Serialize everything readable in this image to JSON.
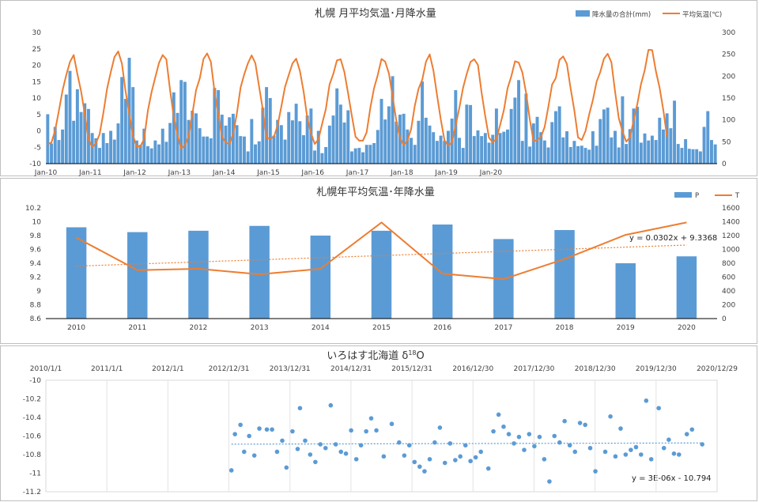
{
  "chart_data": [
    {
      "type": "bar+line",
      "title": "札幌 月平均気温･月降水量",
      "legend": [
        "降水量の合計(mm)",
        "平均気温(℃)"
      ],
      "legend_position": "top-right",
      "x_tick_labels": [
        "Jan-10",
        "Jan-11",
        "Jan-12",
        "Jan-13",
        "Jan-14",
        "Jan-15",
        "Jan-16",
        "Jan-17",
        "Jan-18",
        "Jan-19",
        "Jan-20"
      ],
      "y_left": {
        "min": -10,
        "max": 30,
        "ticks": [
          "-10",
          "-5",
          "0",
          "5",
          "10",
          "15",
          "20",
          "25",
          "30"
        ]
      },
      "y_right": {
        "min": 0,
        "max": 300,
        "ticks": [
          "0",
          "50",
          "100",
          "150",
          "200",
          "250",
          "300"
        ]
      },
      "bar_colors": "#5b9bd5",
      "line_color": "#ed7d31",
      "precipitation_mm": [
        113,
        46,
        84,
        54,
        78,
        158,
        212,
        98,
        170,
        118,
        138,
        125,
        70,
        58,
        36,
        70,
        47,
        75,
        55,
        92,
        198,
        148,
        242,
        175,
        53,
        43,
        80,
        40,
        35,
        53,
        44,
        80,
        50,
        93,
        163,
        116,
        191,
        187,
        100,
        121,
        115,
        81,
        62,
        62,
        58,
        173,
        168,
        112,
        87,
        106,
        114,
        88,
        63,
        62,
        28,
        102,
        44,
        51,
        128,
        175,
        150,
        64,
        100,
        88,
        55,
        118,
        99,
        137,
        97,
        65,
        110,
        126,
        30,
        75,
        24,
        38,
        87,
        110,
        172,
        135,
        94,
        122,
        28,
        35,
        36,
        26,
        43,
        43,
        47,
        77,
        148,
        101,
        131,
        200,
        96,
        112,
        114,
        78,
        59,
        43,
        98,
        188,
        105,
        87,
        72,
        52,
        64,
        52,
        75,
        103,
        168,
        59,
        36,
        135,
        134,
        63,
        76,
        63,
        70,
        48,
        66,
        126,
        70,
        73,
        78,
        125,
        151,
        191,
        52,
        160,
        39,
        92,
        107,
        72,
        53,
        37,
        95,
        120,
        131,
        60,
        74,
        38,
        52,
        40,
        41,
        36,
        32,
        74,
        41,
        102,
        124,
        128,
        60,
        75,
        37,
        154,
        45,
        79,
        126,
        130,
        48,
        69,
        53,
        64,
        54,
        105,
        78,
        115,
        81,
        144,
        45,
        36,
        56,
        34,
        33,
        33,
        28,
        84,
        120,
        54,
        44
      ],
      "temperature_c": [
        -4.0,
        -3.6,
        0.1,
        6.0,
        12.3,
        17.0,
        21.0,
        23.1,
        17.3,
        12.0,
        5.0,
        -2.5,
        -5.0,
        -3.8,
        -1.0,
        5.4,
        12.8,
        17.9,
        22.5,
        24.2,
        20.5,
        12.1,
        5.2,
        -1.5,
        -4.8,
        -4.7,
        -2.5,
        6.1,
        11.8,
        16.3,
        20.7,
        23.1,
        21.8,
        12.4,
        4.2,
        -1.2,
        -5.4,
        -4.4,
        -1.6,
        5.1,
        12.4,
        16.0,
        21.9,
        23.6,
        21.0,
        11.9,
        5.2,
        -1.8,
        -3.6,
        -4.0,
        -0.9,
        5.3,
        13.2,
        17.2,
        20.6,
        23.0,
        20.6,
        13.5,
        6.5,
        -2.2,
        -2.3,
        -1.8,
        1.7,
        7.5,
        13.4,
        17.0,
        20.5,
        22.0,
        18.3,
        12.0,
        3.9,
        -0.7,
        -4.0,
        -2.6,
        2.2,
        6.6,
        14.1,
        17.3,
        21.5,
        21.8,
        17.9,
        11.4,
        4.6,
        -1.8,
        -3.0,
        -3.0,
        -0.5,
        7.0,
        13.0,
        17.0,
        21.9,
        21.1,
        17.5,
        10.4,
        3.1,
        -2.2,
        -4.4,
        -3.0,
        0.5,
        7.7,
        12.8,
        15.6,
        21.1,
        23.3,
        18.4,
        10.7,
        3.5,
        -2.9,
        -4.5,
        -3.5,
        1.6,
        7.0,
        13.1,
        17.4,
        21.0,
        21.8,
        20.1,
        11.7,
        4.4,
        -2.1,
        -3.5,
        -2.5,
        1.8,
        6.3,
        13.0,
        16.6,
        21.2,
        20.8,
        17.8,
        11.6,
        3.5,
        -3.2,
        -2.8,
        -1.9,
        1.2,
        7.4,
        14.1,
        16.1,
        21.6,
        22.7,
        20.4,
        13.0,
        6.3,
        -2.0,
        -2.8,
        -0.1,
        5.0,
        9.4,
        15.0,
        17.9,
        22.0,
        23.5,
        20.9,
        11.9,
        3.8,
        -0.2,
        -3.3,
        -2.0,
        3.2,
        8.3,
        14.3,
        18.5,
        24.7,
        24.6,
        18.2,
        13.1,
        6.3,
        -1.9
      ]
    },
    {
      "type": "bar+line",
      "title": "札幌年平均気温･年降水量",
      "legend": [
        "P",
        "T"
      ],
      "legend_position": "top-right",
      "categories": [
        "2010",
        "2011",
        "2012",
        "2013",
        "2014",
        "2015",
        "2016",
        "2017",
        "2018",
        "2019",
        "2020"
      ],
      "y_left": {
        "min": 8.6,
        "max": 10.2,
        "ticks": [
          "8.6",
          "8.8",
          "9",
          "9.2",
          "9.4",
          "9.6",
          "9.8",
          "10",
          "10.2"
        ]
      },
      "y_right": {
        "min": 0,
        "max": 1600,
        "ticks": [
          "0",
          "200",
          "400",
          "600",
          "800",
          "1000",
          "1200",
          "1400",
          "1600"
        ]
      },
      "series": [
        {
          "name": "P",
          "axis": "right",
          "values": [
            1320,
            1250,
            1270,
            1340,
            1200,
            1270,
            1360,
            1150,
            1280,
            800,
            900
          ]
        },
        {
          "name": "T",
          "axis": "left",
          "values": [
            9.77,
            9.3,
            9.32,
            9.24,
            9.32,
            9.99,
            9.25,
            9.17,
            9.46,
            9.81,
            9.99
          ]
        }
      ],
      "trendline_label": "y = 0.0302x + 9.3368",
      "bar_color": "#5b9bd5",
      "line_color": "#ed7d31"
    },
    {
      "type": "scatter",
      "title": "いろはす北海道 δ18O",
      "x_tick_labels": [
        "2010/1/1",
        "2011/1/1",
        "2012/1/1",
        "2012/12/31",
        "2013/12/31",
        "2014/12/31",
        "2015/12/31",
        "2016/12/30",
        "2017/12/30",
        "2018/12/30",
        "2019/12/30",
        "2020/12/29"
      ],
      "y": {
        "min": -11.2,
        "max": -10,
        "ticks": [
          "-10",
          "-10.2",
          "-10.4",
          "-10.6",
          "-10.8",
          "-11",
          "-11.2"
        ]
      },
      "x_range": [
        "2010-01-01",
        "2020-12-29"
      ],
      "points": [
        [
          "2013-01-15",
          -10.97
        ],
        [
          "2013-02-05",
          -10.58
        ],
        [
          "2013-03-10",
          -10.48
        ],
        [
          "2013-04-01",
          -10.77
        ],
        [
          "2013-05-01",
          -10.6
        ],
        [
          "2013-06-01",
          -10.81
        ],
        [
          "2013-07-01",
          -10.52
        ],
        [
          "2013-08-15",
          -10.53
        ],
        [
          "2013-09-15",
          -10.53
        ],
        [
          "2013-10-15",
          -10.77
        ],
        [
          "2013-11-15",
          -10.65
        ],
        [
          "2013-12-10",
          -10.94
        ],
        [
          "2014-01-15",
          -10.55
        ],
        [
          "2014-02-15",
          -10.74
        ],
        [
          "2014-03-01",
          -10.3
        ],
        [
          "2014-04-01",
          -10.65
        ],
        [
          "2014-05-01",
          -10.8
        ],
        [
          "2014-06-01",
          -10.88
        ],
        [
          "2014-07-01",
          -10.69
        ],
        [
          "2014-08-01",
          -10.73
        ],
        [
          "2014-09-01",
          -10.27
        ],
        [
          "2014-10-01",
          -10.69
        ],
        [
          "2014-11-01",
          -10.77
        ],
        [
          "2014-12-01",
          -10.79
        ],
        [
          "2015-01-01",
          -10.54
        ],
        [
          "2015-02-01",
          -10.85
        ],
        [
          "2015-03-01",
          -10.7
        ],
        [
          "2015-04-01",
          -10.55
        ],
        [
          "2015-05-01",
          -10.41
        ],
        [
          "2015-06-01",
          -10.54
        ],
        [
          "2015-07-15",
          -10.82
        ],
        [
          "2015-09-01",
          -10.47
        ],
        [
          "2015-10-15",
          -10.67
        ],
        [
          "2015-11-15",
          -10.81
        ],
        [
          "2015-12-15",
          -10.7
        ],
        [
          "2016-01-15",
          -10.88
        ],
        [
          "2016-02-15",
          -10.93
        ],
        [
          "2016-03-15",
          -10.98
        ],
        [
          "2016-04-15",
          -10.85
        ],
        [
          "2016-05-15",
          -10.67
        ],
        [
          "2016-06-15",
          -10.51
        ],
        [
          "2016-07-15",
          -10.89
        ],
        [
          "2016-08-15",
          -10.68
        ],
        [
          "2016-09-15",
          -10.86
        ],
        [
          "2016-10-15",
          -10.82
        ],
        [
          "2016-11-15",
          -10.7
        ],
        [
          "2016-12-15",
          -10.87
        ],
        [
          "2017-01-15",
          -10.83
        ],
        [
          "2017-02-15",
          -10.77
        ],
        [
          "2017-04-01",
          -10.95
        ],
        [
          "2017-05-01",
          -10.55
        ],
        [
          "2017-06-01",
          -10.37
        ],
        [
          "2017-07-01",
          -10.5
        ],
        [
          "2017-08-01",
          -10.58
        ],
        [
          "2017-09-01",
          -10.68
        ],
        [
          "2017-10-01",
          -10.61
        ],
        [
          "2017-11-01",
          -10.75
        ],
        [
          "2017-12-01",
          -10.58
        ],
        [
          "2018-01-01",
          -10.71
        ],
        [
          "2018-02-01",
          -10.61
        ],
        [
          "2018-03-01",
          -10.85
        ],
        [
          "2018-04-01",
          -11.09
        ],
        [
          "2018-05-01",
          -10.6
        ],
        [
          "2018-06-01",
          -10.67
        ],
        [
          "2018-07-01",
          -10.44
        ],
        [
          "2018-08-01",
          -10.7
        ],
        [
          "2018-09-01",
          -10.77
        ],
        [
          "2018-10-01",
          -10.46
        ],
        [
          "2018-11-01",
          -10.48
        ],
        [
          "2018-12-01",
          -10.73
        ],
        [
          "2019-01-01",
          -10.98
        ],
        [
          "2019-03-01",
          -10.77
        ],
        [
          "2019-04-01",
          -10.39
        ],
        [
          "2019-05-01",
          -10.82
        ],
        [
          "2019-06-01",
          -10.52
        ],
        [
          "2019-07-01",
          -10.8
        ],
        [
          "2019-08-01",
          -10.75
        ],
        [
          "2019-09-01",
          -10.72
        ],
        [
          "2019-10-01",
          -10.8
        ],
        [
          "2019-11-01",
          -10.22
        ],
        [
          "2019-12-01",
          -10.85
        ],
        [
          "2020-01-15",
          -10.3
        ],
        [
          "2020-02-15",
          -10.73
        ],
        [
          "2020-03-15",
          -10.64
        ],
        [
          "2020-04-15",
          -10.79
        ],
        [
          "2020-05-15",
          -10.8
        ],
        [
          "2020-07-01",
          -10.58
        ],
        [
          "2020-08-01",
          -10.53
        ],
        [
          "2020-10-01",
          -10.69
        ]
      ],
      "trendline_label": "y = 3E-06x - 10.794",
      "point_color": "#5b9bd5"
    }
  ]
}
